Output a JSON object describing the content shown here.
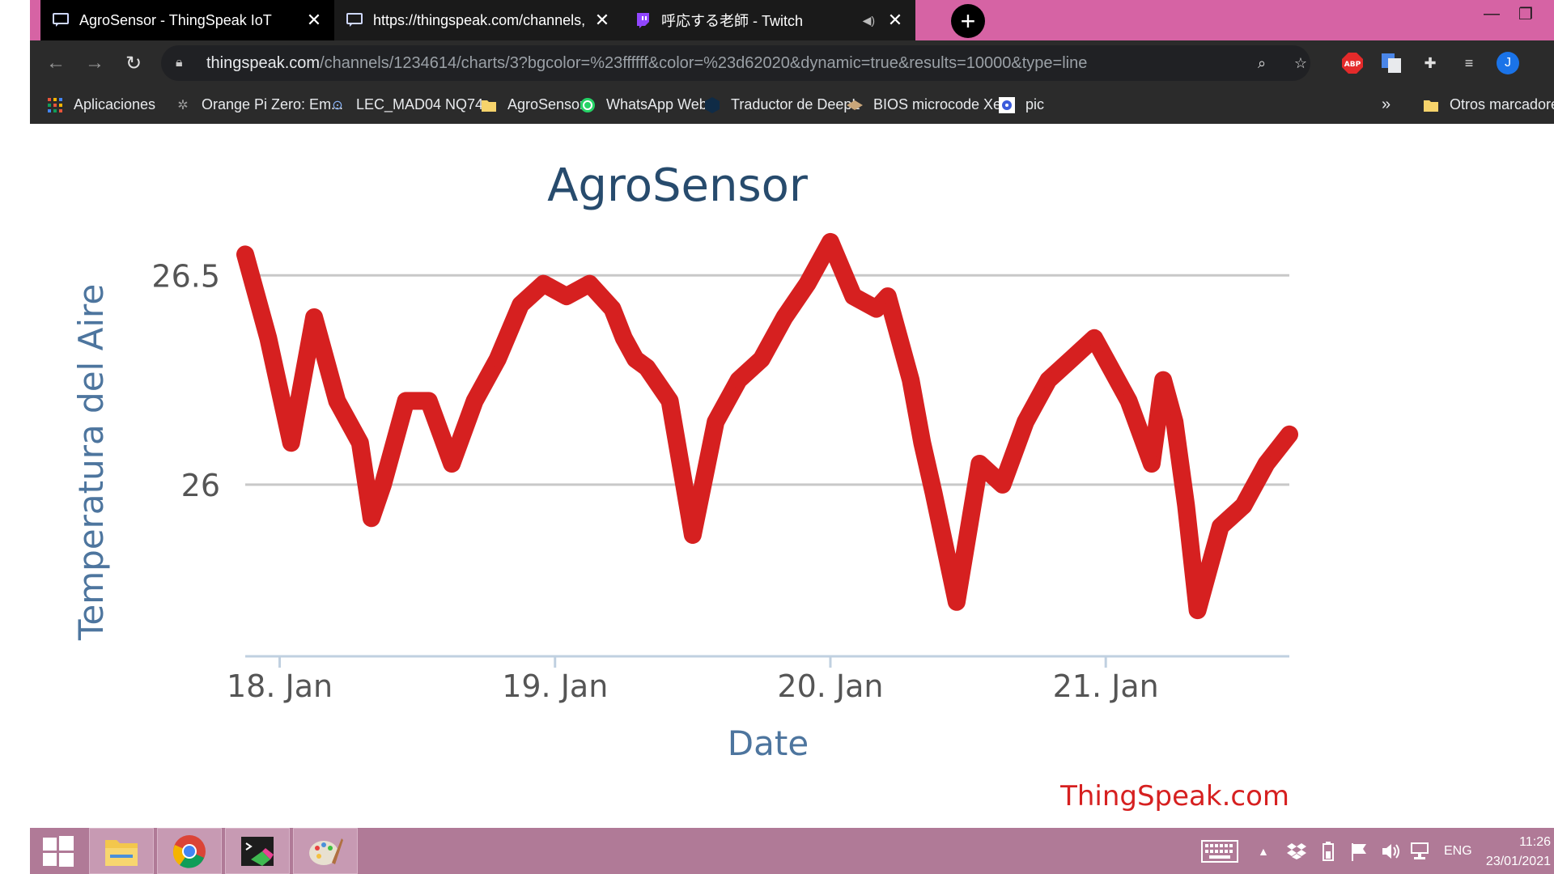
{
  "browser": {
    "tabs": [
      {
        "title": "AgroSensor - ThingSpeak IoT",
        "icon": "message-icon"
      },
      {
        "title": "https://thingspeak.com/channels,",
        "icon": "message-icon"
      },
      {
        "title": "呼応する老師 - Twitch",
        "icon": "twitch-icon"
      }
    ],
    "url_host": "thingspeak.com",
    "url_path": "/channels/1234614/charts/3?bgcolor=%23ffffff&color=%23d62020&dynamic=true&results=10000&type=line",
    "profile_initial": "J",
    "abp_label": "ABP",
    "bookmarks": [
      {
        "label": "Aplicaciones",
        "icon": "apps-grid-icon"
      },
      {
        "label": "Orange Pi Zero: Em...",
        "icon": "bookmark-icon"
      },
      {
        "label": "LEC_MAD04 NQ74...",
        "icon": "lock-icon"
      },
      {
        "label": "AgroSensor",
        "icon": "folder-icon"
      },
      {
        "label": "WhatsApp Web",
        "icon": "whatsapp-icon"
      },
      {
        "label": "Traductor de DeepL",
        "icon": "deepl-icon"
      },
      {
        "label": "BIOS microcode Xe...",
        "icon": "chip-icon"
      },
      {
        "label": "pic",
        "icon": "pic-icon"
      }
    ],
    "more_bookmarks": "»",
    "other_bookmarks": "Otros marcadores"
  },
  "chart_data": {
    "type": "line",
    "title": "AgroSensor",
    "xlabel": "Date",
    "ylabel": "Temperatura del Aire",
    "x_ticks": [
      "18. Jan",
      "19. Jan",
      "20. Jan",
      "21. Jan"
    ],
    "y_ticks": [
      "26",
      "26.5"
    ],
    "ylim": [
      25.59,
      26.63
    ],
    "xlim_days": [
      "2021-01-17 21:00",
      "2021-01-21 16:00"
    ],
    "series": [
      {
        "color": "#d62020",
        "x": [
          "2021-01-17 21:00",
          "2021-01-17 23:00",
          "2021-01-18 01:00",
          "2021-01-18 03:00",
          "2021-01-18 05:00",
          "2021-01-18 07:00",
          "2021-01-18 08:00",
          "2021-01-18 09:00",
          "2021-01-18 11:00",
          "2021-01-18 13:00",
          "2021-01-18 15:00",
          "2021-01-18 17:00",
          "2021-01-18 19:00",
          "2021-01-18 21:00",
          "2021-01-18 23:00",
          "2021-01-19 01:00",
          "2021-01-19 03:00",
          "2021-01-19 05:00",
          "2021-01-19 06:00",
          "2021-01-19 07:00",
          "2021-01-19 08:00",
          "2021-01-19 10:00",
          "2021-01-19 12:00",
          "2021-01-19 14:00",
          "2021-01-19 16:00",
          "2021-01-19 18:00",
          "2021-01-19 20:00",
          "2021-01-19 22:00",
          "2021-01-20 00:00",
          "2021-01-20 02:00",
          "2021-01-20 04:00",
          "2021-01-20 05:00",
          "2021-01-20 06:00",
          "2021-01-20 07:00",
          "2021-01-20 08:00",
          "2021-01-20 09:00",
          "2021-01-20 11:00",
          "2021-01-20 13:00",
          "2021-01-20 15:00",
          "2021-01-20 17:00",
          "2021-01-20 19:00",
          "2021-01-20 21:00",
          "2021-01-20 23:00",
          "2021-01-21 00:00",
          "2021-01-21 02:00",
          "2021-01-21 04:00",
          "2021-01-21 05:00",
          "2021-01-21 06:00",
          "2021-01-21 07:00",
          "2021-01-21 08:00",
          "2021-01-21 10:00",
          "2021-01-21 12:00",
          "2021-01-21 14:00",
          "2021-01-21 16:00"
        ],
        "values": [
          26.55,
          26.35,
          26.1,
          26.4,
          26.2,
          26.1,
          25.92,
          26.0,
          26.2,
          26.2,
          26.05,
          26.2,
          26.3,
          26.43,
          26.48,
          26.45,
          26.48,
          26.42,
          26.35,
          26.3,
          26.28,
          26.2,
          25.88,
          26.15,
          26.25,
          26.3,
          26.4,
          26.48,
          26.58,
          26.45,
          26.42,
          26.45,
          26.35,
          26.25,
          26.1,
          25.98,
          25.72,
          26.05,
          26.0,
          26.15,
          26.25,
          26.3,
          26.35,
          26.3,
          26.2,
          26.05,
          26.25,
          26.15,
          25.95,
          25.7,
          25.9,
          25.95,
          26.05,
          26.12
        ]
      }
    ],
    "watermark": "ThingSpeak.com",
    "title_color": "#274b6d",
    "axis_label_color": "#4d759e",
    "line_color": "#d62020",
    "grid": true
  },
  "taskbar": {
    "language": "ENG",
    "time": "11:26",
    "date": "23/01/2021",
    "apps": [
      {
        "name": "start-button",
        "icon": "windows-logo-icon"
      },
      {
        "name": "file-explorer",
        "icon": "folder-icon"
      },
      {
        "name": "chrome",
        "icon": "chrome-icon"
      },
      {
        "name": "terminal",
        "icon": "terminal-icon"
      },
      {
        "name": "paint",
        "icon": "paint-palette-icon"
      }
    ]
  }
}
